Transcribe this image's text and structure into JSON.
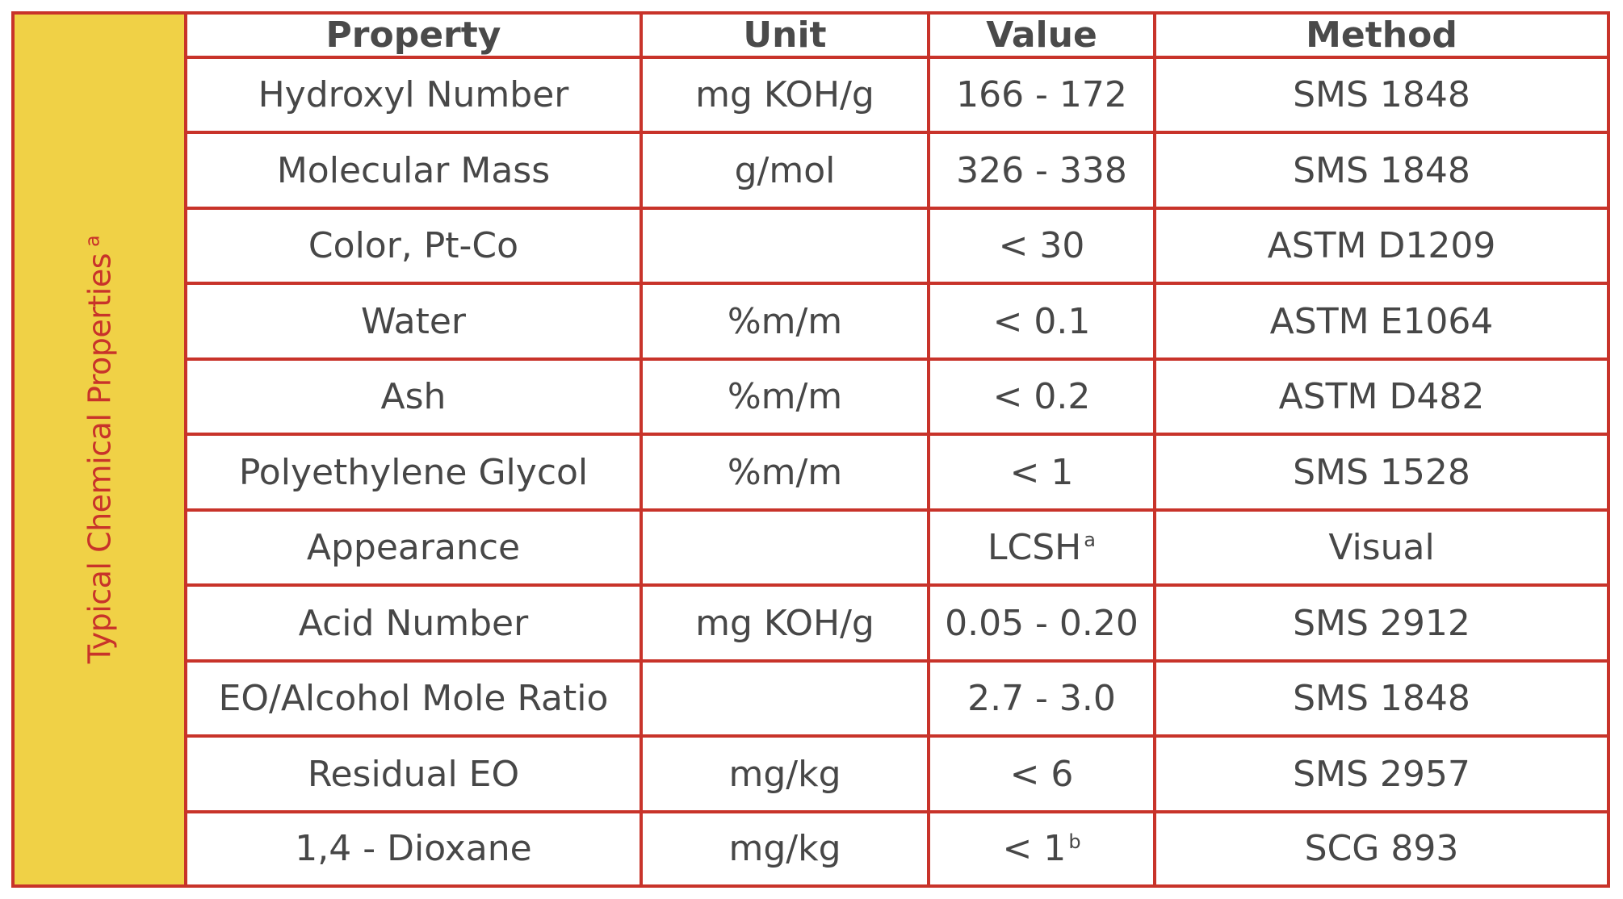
{
  "side_label": {
    "text": "Typical Chemical Properties",
    "superscript": "a"
  },
  "colors": {
    "border": "#c8332a",
    "band": "#f0d146",
    "text": "#474747"
  },
  "table": {
    "headers": {
      "property": "Property",
      "unit": "Unit",
      "value": "Value",
      "method": "Method"
    },
    "rows": [
      {
        "property": "Hydroxyl Number",
        "unit": "mg KOH/g",
        "value": "166 - 172",
        "value_sup": "",
        "method": "SMS 1848"
      },
      {
        "property": "Molecular Mass",
        "unit": "g/mol",
        "value": "326 - 338",
        "value_sup": "",
        "method": "SMS 1848"
      },
      {
        "property": "Color, Pt-Co",
        "unit": "",
        "value": "< 30",
        "value_sup": "",
        "method": "ASTM D1209"
      },
      {
        "property": "Water",
        "unit": "%m/m",
        "value": "< 0.1",
        "value_sup": "",
        "method": "ASTM E1064"
      },
      {
        "property": "Ash",
        "unit": "%m/m",
        "value": "< 0.2",
        "value_sup": "",
        "method": "ASTM D482"
      },
      {
        "property": "Polyethylene Glycol",
        "unit": "%m/m",
        "value": "< 1",
        "value_sup": "",
        "method": "SMS 1528"
      },
      {
        "property": "Appearance",
        "unit": "",
        "value": "LCSH",
        "value_sup": "a",
        "method": "Visual"
      },
      {
        "property": "Acid Number",
        "unit": "mg KOH/g",
        "value": "0.05 - 0.20",
        "value_sup": "",
        "method": "SMS 2912"
      },
      {
        "property": "EO/Alcohol Mole Ratio",
        "unit": "",
        "value": "2.7 - 3.0",
        "value_sup": "",
        "method": "SMS 1848"
      },
      {
        "property": "Residual EO",
        "unit": "mg/kg",
        "value": "< 6",
        "value_sup": "",
        "method": "SMS 2957"
      },
      {
        "property": "1,4 - Dioxane",
        "unit": "mg/kg",
        "value": "< 1",
        "value_sup": "b",
        "method": "SCG  893"
      }
    ]
  }
}
